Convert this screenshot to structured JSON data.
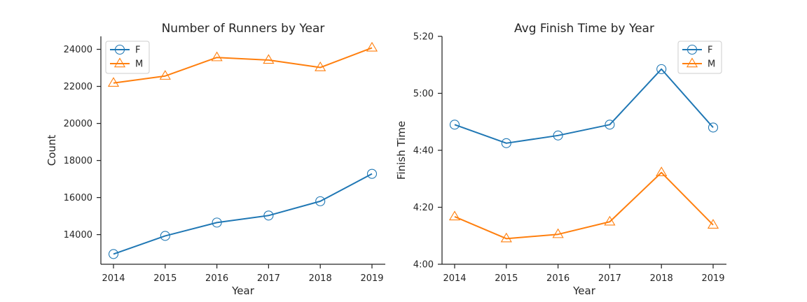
{
  "chart_data": [
    {
      "type": "line",
      "title": "Number of Runners by Year",
      "xlabel": "Year",
      "ylabel": "Count",
      "x": [
        2014,
        2015,
        2016,
        2017,
        2018,
        2019
      ],
      "x_tick_labels": [
        "2014",
        "2015",
        "2016",
        "2017",
        "2018",
        "2019"
      ],
      "ylim": [
        12400,
        24700
      ],
      "y_ticks": [
        14000,
        16000,
        18000,
        20000,
        22000,
        24000
      ],
      "y_tick_labels": [
        "14000",
        "16000",
        "18000",
        "20000",
        "22000",
        "24000"
      ],
      "legend_position": "top-left",
      "grid": false,
      "series": [
        {
          "name": "F",
          "color": "#1f77b4",
          "marker": "circle",
          "values": [
            12950,
            13930,
            14650,
            15030,
            15800,
            17280
          ]
        },
        {
          "name": "M",
          "color": "#ff7f0e",
          "marker": "triangle",
          "values": [
            22180,
            22560,
            23560,
            23420,
            23020,
            24080
          ]
        }
      ]
    },
    {
      "type": "line",
      "title": "Avg Finish Time by Year",
      "xlabel": "Year",
      "ylabel": "Finish Time",
      "y_unit": "minutes",
      "x": [
        2014,
        2015,
        2016,
        2017,
        2018,
        2019
      ],
      "x_tick_labels": [
        "2014",
        "2015",
        "2016",
        "2017",
        "2018",
        "2019"
      ],
      "ylim": [
        240,
        320
      ],
      "y_ticks": [
        240,
        260,
        280,
        300,
        320
      ],
      "y_tick_labels": [
        "4:00",
        "4:20",
        "4:40",
        "5:00",
        "5:20"
      ],
      "legend_position": "top-right",
      "grid": false,
      "series": [
        {
          "name": "F",
          "color": "#1f77b4",
          "marker": "circle",
          "values": [
            289,
            282.5,
            285.2,
            289,
            308.5,
            288
          ]
        },
        {
          "name": "M",
          "color": "#ff7f0e",
          "marker": "triangle",
          "values": [
            256.7,
            249,
            250.5,
            254.9,
            272.2,
            253.8
          ]
        }
      ]
    }
  ]
}
